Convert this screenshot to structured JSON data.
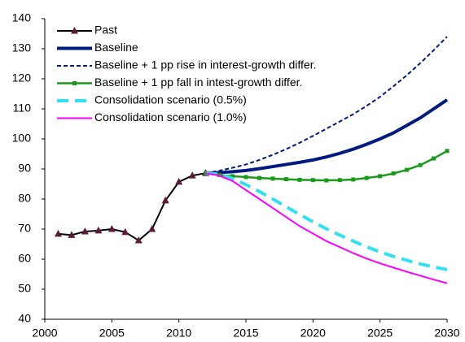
{
  "chart_data": {
    "type": "line",
    "xlim": [
      2000,
      2030
    ],
    "xticks": [
      2000,
      2005,
      2010,
      2015,
      2020,
      2025,
      2030
    ],
    "ylim": [
      40,
      140
    ],
    "yticks": [
      40,
      50,
      60,
      70,
      80,
      90,
      100,
      110,
      120,
      130,
      140
    ],
    "grid": false,
    "legend": "upper-left",
    "series": [
      {
        "name": "Past",
        "color": "#000000",
        "marker": "triangle",
        "marker_color": "#5a1a3a",
        "dash": false,
        "x": [
          2001,
          2002,
          2003,
          2004,
          2005,
          2006,
          2007,
          2008,
          2009,
          2010,
          2011,
          2012
        ],
        "values": [
          68.4,
          68,
          69.2,
          69.5,
          70,
          69,
          66.2,
          70,
          79.5,
          85.7,
          87.8,
          88.6
        ]
      },
      {
        "name": "Baseline",
        "color": "#001a80",
        "dash": false,
        "x": [
          2012,
          2013,
          2014,
          2015,
          2016,
          2017,
          2018,
          2019,
          2020,
          2021,
          2022,
          2023,
          2024,
          2025,
          2026,
          2027,
          2028,
          2029,
          2030
        ],
        "values": [
          88.6,
          88.8,
          89.1,
          89.5,
          90.1,
          90.8,
          91.5,
          92.2,
          93,
          94,
          95.2,
          96.6,
          98.2,
          100,
          102,
          104.5,
          107,
          110,
          113
        ]
      },
      {
        "name": "Baseline + 1 pp rise in interest-growth differ.",
        "color": "#001a80",
        "dash": true,
        "x": [
          2012,
          2013,
          2014,
          2015,
          2016,
          2017,
          2018,
          2019,
          2020,
          2021,
          2022,
          2023,
          2024,
          2025,
          2026,
          2027,
          2028,
          2029,
          2030
        ],
        "values": [
          88.6,
          89.4,
          90.4,
          91.5,
          93,
          94.7,
          96.6,
          98.7,
          101,
          103.4,
          105.8,
          108.2,
          111,
          114,
          117.5,
          121.2,
          125.2,
          129.5,
          134
        ]
      },
      {
        "name": "Baseline + 1 pp fall in intest-growth differ.",
        "color": "#1a9a1a",
        "marker": "square",
        "marker_color": "#1a9a1a",
        "dash": false,
        "x": [
          2012,
          2013,
          2014,
          2015,
          2016,
          2017,
          2018,
          2019,
          2020,
          2021,
          2022,
          2023,
          2024,
          2025,
          2026,
          2027,
          2028,
          2029,
          2030
        ],
        "values": [
          88.6,
          88,
          87.6,
          87.3,
          87,
          86.8,
          86.6,
          86.4,
          86.3,
          86.2,
          86.3,
          86.5,
          87,
          87.6,
          88.5,
          89.7,
          91.3,
          93.5,
          96
        ]
      },
      {
        "name": "Consolidation scenario (0.5%)",
        "color": "#33e0f0",
        "dash": true,
        "x": [
          2012,
          2013,
          2014,
          2015,
          2016,
          2017,
          2018,
          2019,
          2020,
          2021,
          2022,
          2023,
          2024,
          2025,
          2026,
          2027,
          2028,
          2029,
          2030
        ],
        "values": [
          88.6,
          88.3,
          86.8,
          84.8,
          82.5,
          80,
          77.4,
          74.9,
          72.4,
          70.1,
          68,
          66,
          64.1,
          62.4,
          60.9,
          59.6,
          58.4,
          57.4,
          56.5
        ]
      },
      {
        "name": "Consolidation scenario (1.0%)",
        "color": "#ff00ff",
        "dash": false,
        "x": [
          2012,
          2013,
          2014,
          2015,
          2016,
          2017,
          2018,
          2019,
          2020,
          2021,
          2022,
          2023,
          2024,
          2025,
          2026,
          2027,
          2028,
          2029,
          2030
        ],
        "values": [
          88.6,
          87.8,
          86,
          83,
          80,
          77,
          74,
          71,
          68.5,
          66,
          64,
          62,
          60.2,
          58.6,
          57.2,
          55.8,
          54.5,
          53.2,
          52
        ]
      }
    ]
  }
}
